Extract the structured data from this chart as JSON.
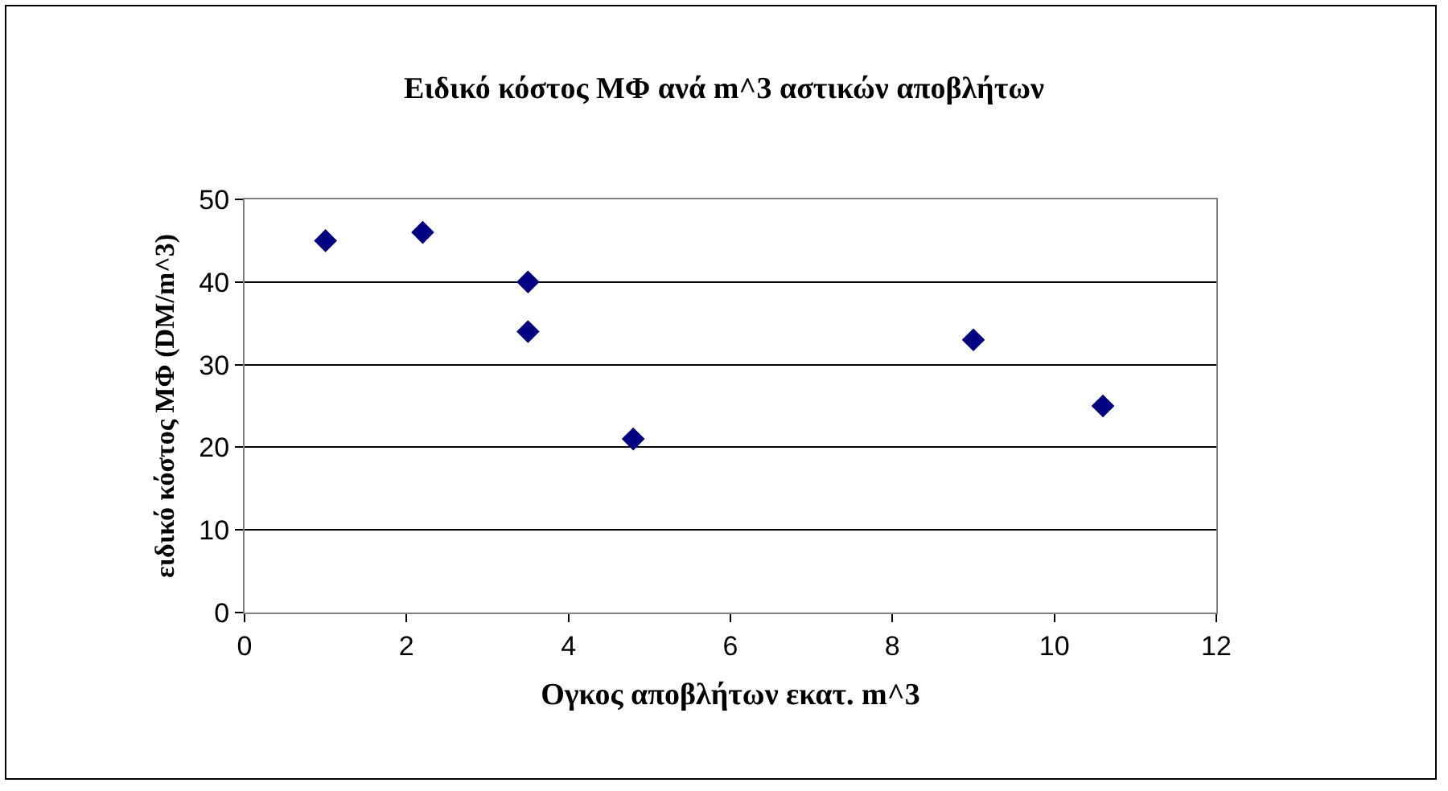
{
  "chart_data": {
    "type": "scatter",
    "title": "Ειδικό κόστος ΜΦ ανά m^3 αστικών αποβλήτων",
    "xlabel": "Ογκος αποβλήτων εκατ. m^3",
    "ylabel": "ειδικό κόστος ΜΦ (DM/m^3)",
    "x": [
      1,
      2.2,
      3.5,
      3.5,
      4.8,
      9,
      10.6
    ],
    "values": [
      45,
      46,
      40,
      34,
      21,
      33,
      25
    ],
    "color": "#000080",
    "marker": "diamond",
    "xlim": [
      0,
      12
    ],
    "xticks": [
      0,
      2,
      4,
      6,
      8,
      10,
      12
    ],
    "ylim": [
      0,
      50
    ],
    "yticks": [
      0,
      10,
      20,
      30,
      40,
      50
    ],
    "grid": "y"
  }
}
